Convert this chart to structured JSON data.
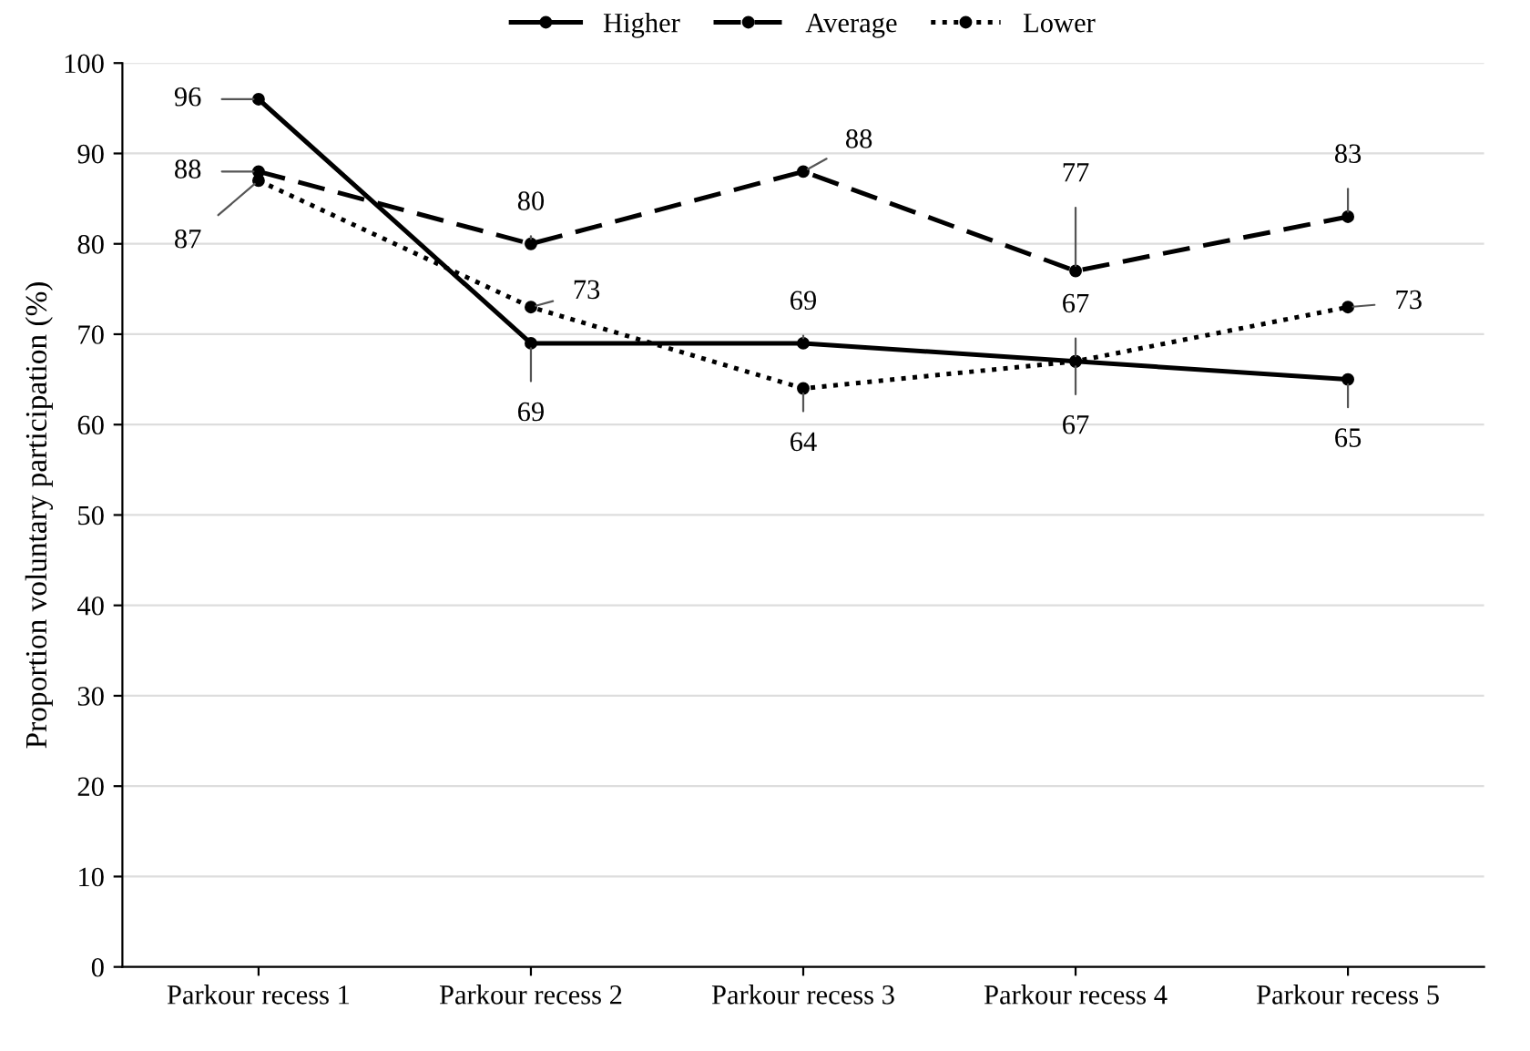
{
  "chart_data": {
    "type": "line",
    "ylabel": "Proportion voluntary participation (%)",
    "categories": [
      "Parkour recess 1",
      "Parkour recess 2",
      "Parkour recess 3",
      "Parkour recess 4",
      "Parkour recess 5"
    ],
    "series": [
      {
        "name": "Higher",
        "color": "#000000",
        "line_style": "solid",
        "values": [
          96,
          69,
          69,
          67,
          65
        ]
      },
      {
        "name": "Average",
        "color": "#000000",
        "line_style": "dashed",
        "values": [
          88,
          80,
          88,
          77,
          83
        ]
      },
      {
        "name": "Lower",
        "color": "#000000",
        "line_style": "dotted",
        "values": [
          87,
          73,
          64,
          67,
          73
        ]
      }
    ],
    "ylim": [
      0,
      100
    ],
    "yticks": [
      0,
      10,
      20,
      30,
      40,
      50,
      60,
      70,
      80,
      90,
      100
    ],
    "grid": "y",
    "legend": "top",
    "marker": "circle",
    "data_labels": true
  }
}
